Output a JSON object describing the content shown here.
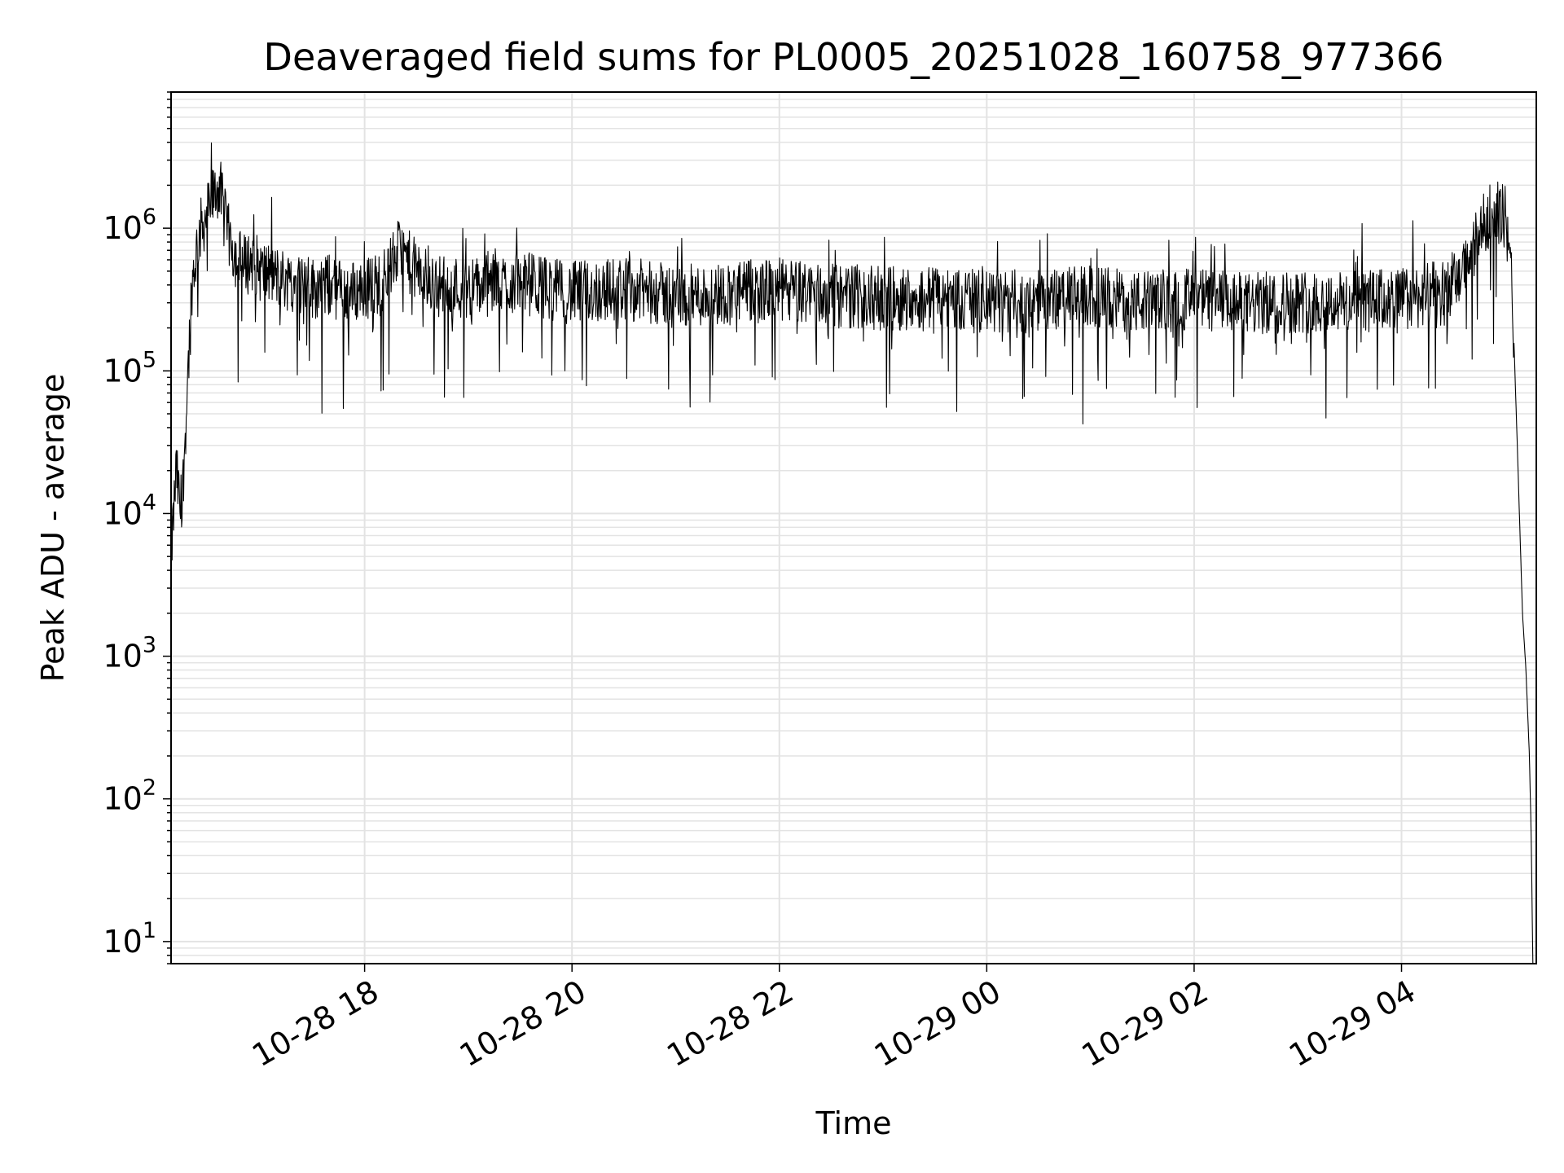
{
  "chart_data": {
    "type": "line",
    "title": "Deaveraged field sums for PL0005_20251028_160758_977366",
    "xlabel": "Time",
    "ylabel": "Peak ADU - average",
    "yscale": "log",
    "xlim": [
      "2025-10-28 16:08",
      "2025-10-29 05:18"
    ],
    "ylim": [
      7,
      9000000
    ],
    "grid": true,
    "line_color": "#000000",
    "grid_color": "#e3e3e3",
    "x_ticks": [
      {
        "value": "2025-10-28 18:00",
        "label": "10-28 18"
      },
      {
        "value": "2025-10-28 20:00",
        "label": "10-28 20"
      },
      {
        "value": "2025-10-28 22:00",
        "label": "10-28 22"
      },
      {
        "value": "2025-10-29 00:00",
        "label": "10-29 00"
      },
      {
        "value": "2025-10-29 02:00",
        "label": "10-29 02"
      },
      {
        "value": "2025-10-29 04:00",
        "label": "10-29 04"
      }
    ],
    "y_ticks": [
      {
        "value": 10,
        "base": "10",
        "exp": "1"
      },
      {
        "value": 100,
        "base": "10",
        "exp": "2"
      },
      {
        "value": 1000,
        "base": "10",
        "exp": "3"
      },
      {
        "value": 10000,
        "base": "10",
        "exp": "4"
      },
      {
        "value": 100000,
        "base": "10",
        "exp": "5"
      },
      {
        "value": 1000000,
        "base": "10",
        "exp": "6"
      }
    ],
    "series": [
      {
        "x": [
          "2025-10-28 16:08",
          "2025-10-28 16:11",
          "2025-10-28 16:14",
          "2025-10-28 16:17",
          "2025-10-28 16:20",
          "2025-10-28 16:24",
          "2025-10-28 16:28",
          "2025-10-28 16:32",
          "2025-10-28 16:36",
          "2025-10-28 16:40",
          "2025-10-28 16:45",
          "2025-10-28 16:50",
          "2025-10-28 16:55",
          "2025-10-28 17:00",
          "2025-10-28 17:10",
          "2025-10-28 17:20",
          "2025-10-28 17:30",
          "2025-10-28 17:40",
          "2025-10-28 17:50",
          "2025-10-28 18:00",
          "2025-10-28 18:10",
          "2025-10-28 18:20",
          "2025-10-28 18:30",
          "2025-10-28 18:40",
          "2025-10-28 19:00",
          "2025-10-28 19:30",
          "2025-10-28 20:00",
          "2025-10-28 20:30",
          "2025-10-28 21:00",
          "2025-10-28 21:30",
          "2025-10-28 22:00",
          "2025-10-28 22:30",
          "2025-10-28 23:00",
          "2025-10-28 23:30",
          "2025-10-29 00:00",
          "2025-10-29 00:30",
          "2025-10-29 01:00",
          "2025-10-29 01:30",
          "2025-10-29 02:00",
          "2025-10-29 02:30",
          "2025-10-29 03:00",
          "2025-10-29 03:30",
          "2025-10-29 04:00",
          "2025-10-29 04:20",
          "2025-10-29 04:35",
          "2025-10-29 04:45",
          "2025-10-29 04:53",
          "2025-10-29 05:00",
          "2025-10-29 05:04",
          "2025-10-29 05:07",
          "2025-10-29 05:10",
          "2025-10-29 05:12",
          "2025-10-29 05:14",
          "2025-10-29 05:15",
          "2025-10-29 05:16"
        ],
        "y": [
          5000,
          20000,
          9000,
          60000,
          400000,
          900000,
          1200000,
          1600000,
          2000000,
          1000000,
          650000,
          550000,
          600000,
          500000,
          450000,
          420000,
          380000,
          400000,
          350000,
          380000,
          420000,
          700000,
          500000,
          400000,
          380000,
          420000,
          350000,
          380000,
          330000,
          350000,
          370000,
          340000,
          320000,
          330000,
          300000,
          310000,
          330000,
          300000,
          320000,
          290000,
          310000,
          300000,
          320000,
          350000,
          450000,
          900000,
          1400000,
          1200000,
          400000,
          30000,
          2000,
          800,
          200,
          60,
          7
        ]
      }
    ]
  }
}
